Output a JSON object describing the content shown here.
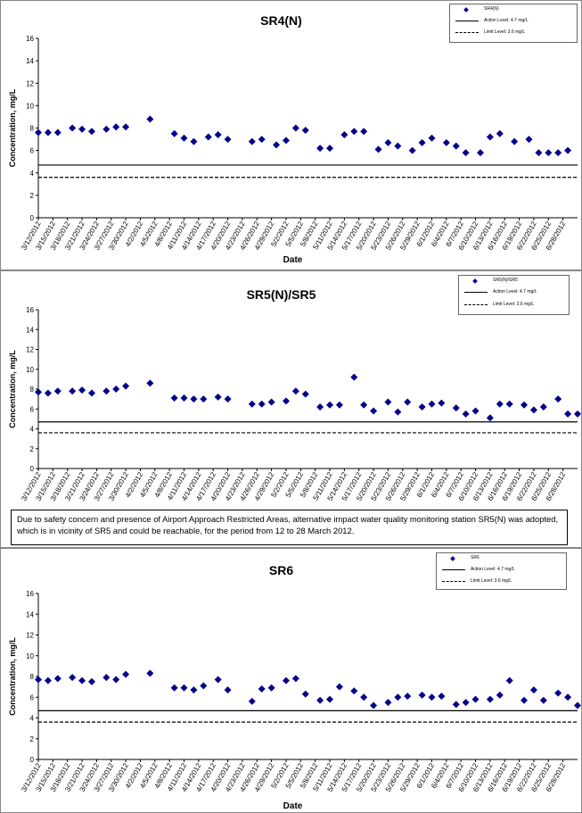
{
  "dates": [
    "3/12/2012",
    "3/15/2012",
    "3/18/2012",
    "3/21/2012",
    "3/24/2012",
    "3/27/2012",
    "3/30/2012",
    "4/2/2012",
    "4/5/2012",
    "4/8/2012",
    "4/11/2012",
    "4/14/2012",
    "4/17/2012",
    "4/20/2012",
    "4/23/2012",
    "4/26/2012",
    "4/29/2012",
    "5/2/2012",
    "5/5/2012",
    "5/8/2012",
    "5/11/2012",
    "5/14/2012",
    "5/17/2012",
    "5/20/2012",
    "5/23/2012",
    "5/26/2012",
    "5/29/2012",
    "6/1/2012",
    "6/4/2012",
    "6/7/2012",
    "6/10/2012",
    "6/13/2012",
    "6/16/2012",
    "6/19/2012",
    "6/22/2012",
    "6/25/2012",
    "6/28/2012"
  ],
  "note": "Due to safety concern and presence of Airport Approach Restricted Areas, alternative impact water quality monitoring station SR5(N) was adopted, which is in vicinity of SR5 and could be reachable, for the period from 12 to 28 March 2012.",
  "colors": {
    "marker": "#00008b",
    "line": "#000000"
  },
  "chart_data": [
    {
      "type": "scatter",
      "title": "SR4(N)",
      "xlabel": "Date",
      "ylabel": "Concentration, mg/L",
      "ylim": [
        0,
        16
      ],
      "yticks": [
        0,
        2,
        4,
        6,
        8,
        10,
        12,
        14,
        16
      ],
      "series": [
        {
          "name": "SR4(N)",
          "marker": "diamond",
          "x": [
            "3/12/2012",
            "3/14/2012",
            "3/16/2012",
            "3/19/2012",
            "3/21/2012",
            "3/23/2012",
            "3/26/2012",
            "3/28/2012",
            "3/30/2012",
            "4/4/2012",
            "4/9/2012",
            "4/11/2012",
            "4/13/2012",
            "4/16/2012",
            "4/18/2012",
            "4/20/2012",
            "4/25/2012",
            "4/27/2012",
            "4/30/2012",
            "5/2/2012",
            "5/4/2012",
            "5/6/2012",
            "5/9/2012",
            "5/11/2012",
            "5/14/2012",
            "5/16/2012",
            "5/18/2012",
            "5/21/2012",
            "5/23/2012",
            "5/25/2012",
            "5/28/2012",
            "5/30/2012",
            "6/1/2012",
            "6/4/2012",
            "6/6/2012",
            "6/8/2012",
            "6/11/2012",
            "6/13/2012",
            "6/15/2012",
            "6/18/2012",
            "6/21/2012",
            "6/23/2012",
            "6/25/2012",
            "6/27/2012",
            "6/29/2012"
          ],
          "y": [
            7.6,
            7.6,
            7.6,
            8.0,
            7.9,
            7.7,
            7.9,
            8.1,
            8.1,
            8.8,
            7.5,
            7.1,
            6.8,
            7.2,
            7.4,
            7.0,
            6.8,
            7.0,
            6.5,
            6.9,
            8.0,
            7.8,
            6.2,
            6.2,
            7.4,
            7.7,
            7.7,
            6.1,
            6.7,
            6.4,
            6.0,
            6.7,
            7.1,
            6.7,
            6.4,
            5.8,
            5.8,
            7.2,
            7.5,
            6.8,
            7.0,
            5.8,
            5.8,
            5.8,
            6.0
          ]
        },
        {
          "name": "Action Level: 4.7 mg/L",
          "type": "hline",
          "y": 4.7,
          "style": "solid"
        },
        {
          "name": "Limit Level: 3.6 mg/L",
          "type": "hline",
          "y": 3.6,
          "style": "dashed"
        }
      ]
    },
    {
      "type": "scatter",
      "title": "SR5(N)/SR5",
      "xlabel": "Date",
      "ylabel": "Concentration, mg/L",
      "ylim": [
        0,
        16
      ],
      "yticks": [
        0,
        2,
        4,
        6,
        8,
        10,
        12,
        14,
        16
      ],
      "series": [
        {
          "name": "SR5(N)/SR5",
          "marker": "diamond",
          "x": [
            "3/12/2012",
            "3/14/2012",
            "3/16/2012",
            "3/19/2012",
            "3/21/2012",
            "3/23/2012",
            "3/26/2012",
            "3/28/2012",
            "3/30/2012",
            "4/4/2012",
            "4/9/2012",
            "4/11/2012",
            "4/13/2012",
            "4/15/2012",
            "4/18/2012",
            "4/20/2012",
            "4/25/2012",
            "4/27/2012",
            "4/29/2012",
            "5/2/2012",
            "5/4/2012",
            "5/6/2012",
            "5/9/2012",
            "5/11/2012",
            "5/13/2012",
            "5/16/2012",
            "5/18/2012",
            "5/20/2012",
            "5/23/2012",
            "5/25/2012",
            "5/27/2012",
            "5/30/2012",
            "6/1/2012",
            "6/3/2012",
            "6/6/2012",
            "6/8/2012",
            "6/10/2012",
            "6/13/2012",
            "6/15/2012",
            "6/17/2012",
            "6/20/2012",
            "6/22/2012",
            "6/24/2012",
            "6/27/2012",
            "6/29/2012",
            "7/1/2012"
          ],
          "y": [
            7.7,
            7.6,
            7.8,
            7.8,
            7.9,
            7.6,
            7.8,
            8.0,
            8.3,
            8.6,
            7.1,
            7.1,
            7.0,
            7.0,
            7.2,
            7.0,
            6.5,
            6.5,
            6.7,
            6.8,
            7.8,
            7.5,
            6.2,
            6.4,
            6.4,
            9.2,
            6.4,
            5.8,
            6.7,
            5.7,
            6.7,
            6.2,
            6.5,
            6.6,
            6.1,
            5.5,
            5.8,
            5.1,
            6.5,
            6.5,
            6.4,
            5.9,
            6.2,
            7.0,
            5.5,
            5.5
          ]
        },
        {
          "name": "Action Level: 4.7 mg/L",
          "type": "hline",
          "y": 4.7,
          "style": "solid"
        },
        {
          "name": "Limit Level: 3.6 mg/L",
          "type": "hline",
          "y": 3.6,
          "style": "dashed"
        }
      ]
    },
    {
      "type": "scatter",
      "title": "SR6",
      "xlabel": "Date",
      "ylabel": "Concentration, mg/L",
      "ylim": [
        0,
        16
      ],
      "yticks": [
        0,
        2,
        4,
        6,
        8,
        10,
        12,
        14,
        16
      ],
      "series": [
        {
          "name": "SR6",
          "marker": "diamond",
          "x": [
            "3/12/2012",
            "3/14/2012",
            "3/16/2012",
            "3/19/2012",
            "3/21/2012",
            "3/23/2012",
            "3/26/2012",
            "3/28/2012",
            "3/30/2012",
            "4/4/2012",
            "4/9/2012",
            "4/11/2012",
            "4/13/2012",
            "4/15/2012",
            "4/18/2012",
            "4/20/2012",
            "4/25/2012",
            "4/27/2012",
            "4/29/2012",
            "5/2/2012",
            "5/4/2012",
            "5/6/2012",
            "5/9/2012",
            "5/11/2012",
            "5/13/2012",
            "5/16/2012",
            "5/18/2012",
            "5/20/2012",
            "5/23/2012",
            "5/25/2012",
            "5/27/2012",
            "5/30/2012",
            "6/1/2012",
            "6/3/2012",
            "6/6/2012",
            "6/8/2012",
            "6/10/2012",
            "6/13/2012",
            "6/15/2012",
            "6/17/2012",
            "6/20/2012",
            "6/22/2012",
            "6/24/2012",
            "6/27/2012",
            "6/29/2012",
            "7/1/2012"
          ],
          "y": [
            7.7,
            7.6,
            7.8,
            7.9,
            7.6,
            7.5,
            7.9,
            7.7,
            8.2,
            8.3,
            6.9,
            6.9,
            6.7,
            7.1,
            7.7,
            6.7,
            5.6,
            6.8,
            6.9,
            7.6,
            7.8,
            6.3,
            5.7,
            5.8,
            7.0,
            6.6,
            6.0,
            5.2,
            5.5,
            6.0,
            6.1,
            6.2,
            6.0,
            6.1,
            5.3,
            5.5,
            5.8,
            5.8,
            6.2,
            7.6,
            5.7,
            6.7,
            5.7,
            6.4,
            6.0,
            5.2
          ]
        },
        {
          "name": "Action Level: 4.7 mg/L",
          "type": "hline",
          "y": 4.7,
          "style": "solid"
        },
        {
          "name": "Limit Level: 3.6 mg/L",
          "type": "hline",
          "y": 3.6,
          "style": "dashed"
        }
      ]
    }
  ]
}
